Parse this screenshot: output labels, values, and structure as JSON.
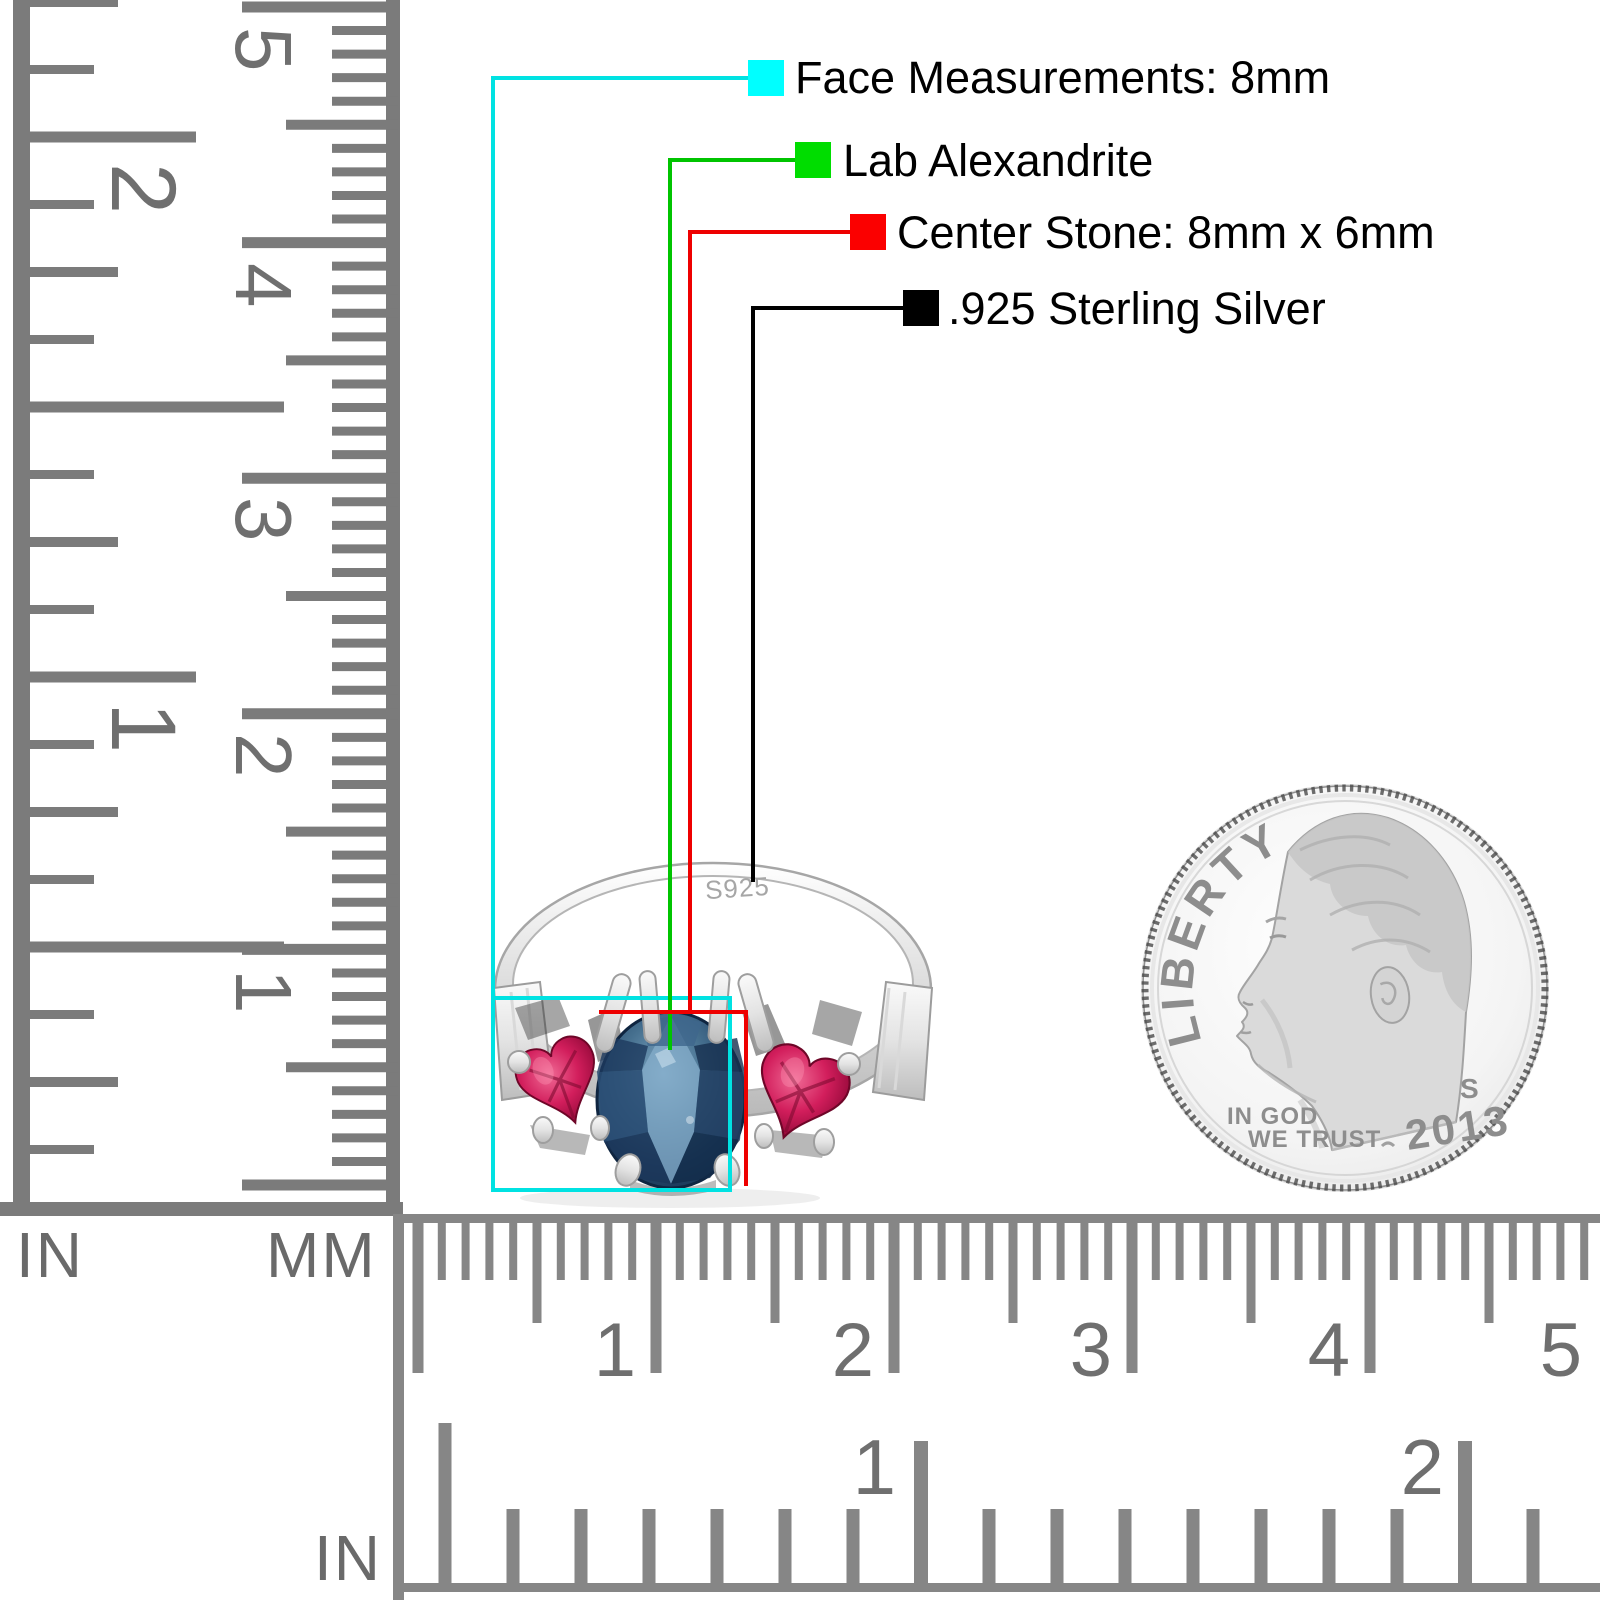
{
  "page": {
    "background": "#ffffff"
  },
  "callouts": [
    {
      "label": "Face Measurements: 8mm",
      "swatch_color": "#00ffff",
      "line_color": "#00e2e2"
    },
    {
      "label": "Lab Alexandrite",
      "swatch_color": "#00dd00",
      "line_color": "#00c400"
    },
    {
      "label": "Center Stone: 8mm x 6mm",
      "swatch_color": "#fb0000",
      "line_color": "#ee0000"
    },
    {
      "label": ".925 Sterling Silver",
      "swatch_color": "#000000",
      "line_color": "#000000"
    }
  ],
  "ring": {
    "engraving": "S925",
    "metal_color": "#d9d9d9",
    "center_stone_color": "#33567c",
    "side_stone_color": "#c41355"
  },
  "coin": {
    "legend": "LIBERTY",
    "motto_line1": "IN GOD",
    "motto_line2": "WE TRUST",
    "mint_mark": "S",
    "year": "2013"
  },
  "rulers": {
    "left_inch": {
      "unit_label": "IN",
      "numbers": [
        "2",
        "1"
      ]
    },
    "left_mm": {
      "unit_label": "MM",
      "numbers": [
        "5",
        "4",
        "3",
        "2",
        "1"
      ]
    },
    "bottom_mm": {
      "numbers": [
        "1",
        "2",
        "3",
        "4",
        "5"
      ]
    },
    "bottom_inch": {
      "unit_label": "IN",
      "numbers": [
        "1",
        "2"
      ]
    }
  }
}
